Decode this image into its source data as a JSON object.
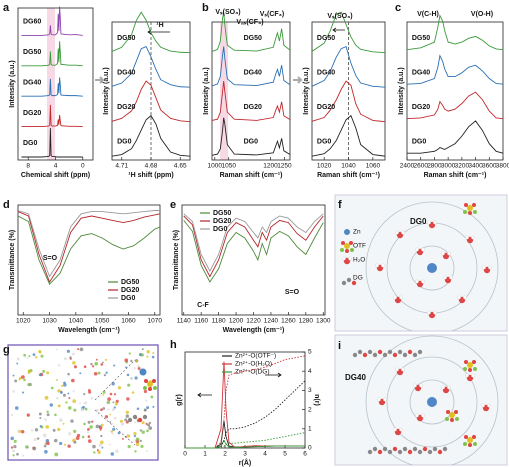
{
  "chart_data": [
    {
      "type": "line",
      "panel": "a",
      "xlabel": "Chemical shift (ppm)",
      "ylabel": "Intensity (a.u.)",
      "xlim": [
        9.5,
        -1.5
      ],
      "xticks": [
        8,
        4,
        0
      ],
      "ylim": [
        0,
        1
      ],
      "x": [
        9,
        6,
        5,
        4.85,
        4.75,
        4.65,
        4.5,
        4,
        3.7,
        3.6,
        3.5,
        3.4,
        3.3,
        3.2,
        2,
        1,
        0
      ],
      "series": [
        {
          "name": "DG60",
          "color": "#8e44ad",
          "values": [
            0,
            0,
            0.02,
            0.05,
            0.35,
            0.05,
            0.02,
            0.02,
            0.1,
            0.75,
            0.15,
            1,
            0.6,
            0.05,
            0.02,
            0.03,
            0
          ]
        },
        {
          "name": "DG50",
          "color": "#3a9a3a",
          "values": [
            0,
            0,
            0.02,
            0.05,
            0.5,
            0.05,
            0.02,
            0.02,
            0.08,
            0.6,
            0.12,
            0.85,
            0.5,
            0.05,
            0.02,
            0.02,
            0
          ]
        },
        {
          "name": "DG40",
          "color": "#2a6fb5",
          "values": [
            0,
            0,
            0.02,
            0.05,
            0.6,
            0.05,
            0.02,
            0.02,
            0.06,
            0.45,
            0.1,
            0.65,
            0.4,
            0.04,
            0.02,
            0.02,
            0
          ]
        },
        {
          "name": "DG20",
          "color": "#c0282d",
          "values": [
            0,
            0,
            0.02,
            0.05,
            0.75,
            0.05,
            0.02,
            0.02,
            0.04,
            0.25,
            0.06,
            0.4,
            0.2,
            0.03,
            0.01,
            0.01,
            0
          ]
        },
        {
          "name": "DG0",
          "color": "#222222",
          "values": [
            0,
            0,
            0.02,
            0.05,
            1,
            0.05,
            0.02,
            0.01,
            0,
            0,
            0,
            0,
            0,
            0,
            0,
            0,
            0
          ]
        }
      ]
    },
    {
      "type": "line",
      "xlabel": "¹H shift (ppm)",
      "ylabel": "Intensity (a.u.)",
      "annotations": [
        "¹H"
      ],
      "xlim": [
        4.72,
        4.64
      ],
      "xticks": [
        4.71,
        4.68,
        4.65
      ],
      "ylim": [
        0,
        1
      ],
      "x": [
        4.72,
        4.71,
        4.7,
        4.695,
        4.69,
        4.685,
        4.68,
        4.675,
        4.67,
        4.66,
        4.65,
        4.64
      ],
      "series": [
        {
          "name": "DG50",
          "color": "#3a9a3a",
          "values": [
            0.05,
            0.15,
            0.45,
            0.8,
            1,
            0.8,
            0.5,
            0.3,
            0.15,
            0.06,
            0.03,
            0.02
          ]
        },
        {
          "name": "DG40",
          "color": "#2a6fb5",
          "values": [
            0.04,
            0.12,
            0.35,
            0.65,
            0.95,
            1,
            0.75,
            0.45,
            0.2,
            0.08,
            0.03,
            0.02
          ]
        },
        {
          "name": "DG20",
          "color": "#c0282d",
          "values": [
            0.03,
            0.1,
            0.28,
            0.5,
            0.8,
            1,
            0.9,
            0.6,
            0.3,
            0.1,
            0.04,
            0.02
          ]
        },
        {
          "name": "DG0",
          "color": "#222222",
          "values": [
            0.02,
            0.06,
            0.2,
            0.4,
            0.65,
            0.9,
            1,
            0.8,
            0.45,
            0.12,
            0.04,
            0.02
          ]
        }
      ]
    },
    {
      "type": "line",
      "panel": "b",
      "xlabel": "Raman shift (cm⁻¹)",
      "ylabel": "Intensity (a.u.)",
      "annotations": [
        "Vₛ(SO₃)",
        "Vₐₛ(CF₃)",
        "Vₛ(CF₃)"
      ],
      "xlim": [
        990,
        1270
      ],
      "xticks": [
        1000,
        1050,
        1200,
        1250
      ],
      "ylim": [
        0,
        1
      ],
      "x": [
        990,
        1010,
        1020,
        1028,
        1032,
        1036,
        1045,
        1070,
        1150,
        1210,
        1218,
        1225,
        1232,
        1240,
        1248,
        1270
      ],
      "series": [
        {
          "name": "DG50",
          "color": "#3a9a3a",
          "values": [
            0.05,
            0.1,
            0.3,
            0.85,
            1,
            0.7,
            0.2,
            0.08,
            0.06,
            0.15,
            0.35,
            0.5,
            0.3,
            0.6,
            0.2,
            0.08
          ]
        },
        {
          "name": "DG40",
          "color": "#2a6fb5",
          "values": [
            0.05,
            0.1,
            0.28,
            0.8,
            1,
            0.72,
            0.22,
            0.08,
            0.06,
            0.14,
            0.32,
            0.45,
            0.28,
            0.55,
            0.18,
            0.08
          ]
        },
        {
          "name": "DG20",
          "color": "#c0282d",
          "values": [
            0.05,
            0.08,
            0.25,
            0.75,
            1,
            0.75,
            0.25,
            0.08,
            0.05,
            0.12,
            0.28,
            0.4,
            0.25,
            0.5,
            0.16,
            0.07
          ]
        },
        {
          "name": "DG0",
          "color": "#222222",
          "values": [
            0.04,
            0.07,
            0.2,
            0.65,
            0.95,
            0.8,
            0.3,
            0.07,
            0.05,
            0.1,
            0.25,
            0.38,
            0.22,
            0.45,
            0.15,
            0.06
          ]
        }
      ]
    },
    {
      "type": "line",
      "xlabel": "Raman shift (cm⁻¹)",
      "ylabel": "Intensity (a.u.)",
      "annotations": [
        "Vₛ(SO₃)"
      ],
      "xlim": [
        1010,
        1070
      ],
      "xticks": [
        1020,
        1040,
        1060
      ],
      "ylim": [
        0,
        1
      ],
      "x": [
        1010,
        1020,
        1025,
        1030,
        1034,
        1038,
        1042,
        1046,
        1050,
        1060,
        1070
      ],
      "series": [
        {
          "name": "DG50",
          "color": "#3a9a3a",
          "values": [
            0.05,
            0.25,
            0.55,
            0.95,
            1,
            0.7,
            0.4,
            0.2,
            0.1,
            0.04,
            0.02
          ]
        },
        {
          "name": "DG40",
          "color": "#2a6fb5",
          "values": [
            0.04,
            0.18,
            0.4,
            0.75,
            0.95,
            1,
            0.6,
            0.3,
            0.12,
            0.04,
            0.02
          ]
        },
        {
          "name": "DG20",
          "color": "#c0282d",
          "values": [
            0.03,
            0.12,
            0.3,
            0.55,
            0.8,
            1,
            0.9,
            0.45,
            0.2,
            0.05,
            0.02
          ]
        },
        {
          "name": "DG0",
          "color": "#222222",
          "values": [
            0.02,
            0.08,
            0.2,
            0.4,
            0.65,
            0.9,
            1,
            0.7,
            0.3,
            0.06,
            0.02
          ]
        }
      ]
    },
    {
      "type": "line",
      "panel": "c",
      "xlabel": "Raman shift (cm⁻¹)",
      "ylabel": "Intensity (a.u.)",
      "annotations": [
        "V(C-H)",
        "V(O-H)"
      ],
      "xlim": [
        2400,
        3800
      ],
      "xticks": [
        2400,
        2600,
        2800,
        3000,
        3200,
        3400,
        3600,
        3800
      ],
      "ylim": [
        0,
        1
      ],
      "x": [
        2400,
        2600,
        2800,
        2850,
        2880,
        2920,
        2950,
        3000,
        3100,
        3200,
        3300,
        3400,
        3500,
        3600,
        3700,
        3800
      ],
      "series": [
        {
          "name": "DG50",
          "color": "#3a9a3a",
          "values": [
            0.1,
            0.15,
            0.3,
            0.7,
            1,
            0.85,
            0.6,
            0.3,
            0.25,
            0.3,
            0.4,
            0.45,
            0.35,
            0.2,
            0.12,
            0.1
          ]
        },
        {
          "name": "DG40",
          "color": "#2a6fb5",
          "values": [
            0.1,
            0.12,
            0.25,
            0.55,
            0.85,
            0.7,
            0.5,
            0.3,
            0.3,
            0.4,
            0.55,
            0.6,
            0.45,
            0.25,
            0.12,
            0.1
          ]
        },
        {
          "name": "DG20",
          "color": "#c0282d",
          "values": [
            0.1,
            0.12,
            0.2,
            0.35,
            0.55,
            0.45,
            0.35,
            0.3,
            0.35,
            0.5,
            0.7,
            0.8,
            0.6,
            0.3,
            0.12,
            0.1
          ]
        },
        {
          "name": "DG0",
          "color": "#222222",
          "values": [
            0.1,
            0.1,
            0.15,
            0.2,
            0.25,
            0.22,
            0.2,
            0.25,
            0.35,
            0.55,
            0.8,
            0.95,
            0.7,
            0.35,
            0.15,
            0.1
          ]
        }
      ]
    },
    {
      "type": "line",
      "panel": "d",
      "xlabel": "Wavelength (cm⁻¹)",
      "ylabel": "Transmittance (%)",
      "annotations": [
        "S=O"
      ],
      "xlim": [
        1018,
        1072
      ],
      "xticks": [
        1020,
        1030,
        1040,
        1050,
        1060,
        1070
      ],
      "ylim": [
        0,
        100
      ],
      "x": [
        1018,
        1022,
        1026,
        1030,
        1034,
        1038,
        1042,
        1046,
        1050,
        1054,
        1058,
        1062,
        1066,
        1070,
        1072
      ],
      "series": [
        {
          "name": "DG50",
          "color": "#4e8a3a",
          "values": [
            90,
            85,
            50,
            28,
            38,
            60,
            72,
            74,
            70,
            64,
            60,
            63,
            70,
            78,
            80
          ]
        },
        {
          "name": "DG20",
          "color": "#b3262b",
          "values": [
            94,
            90,
            55,
            30,
            45,
            75,
            88,
            90,
            88,
            86,
            84,
            86,
            89,
            91,
            92
          ]
        },
        {
          "name": "DG0",
          "color": "#9a9a9a",
          "values": [
            95,
            92,
            60,
            35,
            50,
            80,
            92,
            94,
            94,
            93,
            92,
            93,
            94,
            95,
            95
          ]
        }
      ]
    },
    {
      "type": "line",
      "panel": "e",
      "xlabel": "Wavelength (cm⁻¹)",
      "ylabel": "Transmittance (%)",
      "annotations": [
        "C-F",
        "S=O"
      ],
      "xlim": [
        1138,
        1302
      ],
      "xticks": [
        1140,
        1160,
        1180,
        1200,
        1220,
        1240,
        1260,
        1280,
        1300
      ],
      "ylim": [
        0,
        100
      ],
      "x": [
        1140,
        1150,
        1160,
        1170,
        1180,
        1190,
        1200,
        1210,
        1220,
        1225,
        1230,
        1235,
        1240,
        1250,
        1260,
        1270,
        1280,
        1290,
        1300
      ],
      "series": [
        {
          "name": "DG50",
          "color": "#4e8a3a",
          "values": [
            86,
            76,
            45,
            30,
            42,
            65,
            75,
            70,
            58,
            50,
            65,
            55,
            70,
            76,
            72,
            62,
            55,
            70,
            84
          ]
        },
        {
          "name": "DG20",
          "color": "#b3262b",
          "values": [
            90,
            82,
            50,
            35,
            50,
            75,
            84,
            80,
            68,
            62,
            75,
            68,
            80,
            86,
            84,
            74,
            68,
            80,
            90
          ]
        },
        {
          "name": "DG0",
          "color": "#9a9a9a",
          "values": [
            92,
            85,
            55,
            40,
            55,
            80,
            88,
            85,
            75,
            70,
            80,
            75,
            85,
            90,
            88,
            80,
            75,
            85,
            92
          ]
        }
      ]
    },
    {
      "type": "line",
      "panel": "h",
      "xlabel": "r(Å)",
      "ylabel": "g(r)",
      "y2label": "n(r)",
      "xlim": [
        0,
        6
      ],
      "xticks": [
        0,
        1,
        2,
        3,
        4,
        5,
        6
      ],
      "ylim": [
        0,
        50
      ],
      "y2lim": [
        0,
        5
      ],
      "y2ticks": [
        0,
        1,
        2,
        3,
        4,
        5
      ],
      "x": [
        0,
        1,
        1.5,
        1.8,
        1.95,
        2.05,
        2.2,
        2.5,
        3,
        3.5,
        4,
        4.5,
        5,
        5.5,
        6
      ],
      "series": [
        {
          "name": "Zn²⁺-O(OTF⁻)",
          "color": "#222222",
          "values": [
            0,
            0,
            0,
            2,
            14,
            6,
            1,
            0.5,
            0.6,
            0.8,
            0.9,
            1,
            1,
            1,
            1
          ]
        },
        {
          "name": "Zn²⁺-O(H₂O)",
          "color": "#d0343a",
          "values": [
            0,
            0,
            0,
            10,
            45,
            20,
            3,
            0.3,
            0.8,
            1.2,
            1,
            1,
            1,
            1,
            1
          ]
        },
        {
          "name": "Zn²⁺-O(DG)",
          "color": "#3a9a3a",
          "values": [
            0,
            0,
            0,
            1,
            4,
            2,
            0.5,
            0.3,
            0.5,
            0.7,
            0.9,
            1,
            1,
            1,
            1
          ]
        },
        {
          "axis": "y2",
          "color": "#222222",
          "values": [
            0,
            0,
            0,
            0.05,
            0.4,
            0.8,
            1,
            1,
            1.1,
            1.3,
            1.6,
            2,
            2.5,
            3,
            3.5
          ]
        },
        {
          "axis": "y2",
          "color": "#d0343a",
          "values": [
            0,
            0,
            0,
            0.3,
            1.5,
            3,
            3.8,
            3.9,
            4,
            4.1,
            4.2,
            4.4,
            4.6,
            4.7,
            4.8
          ]
        },
        {
          "axis": "y2",
          "color": "#3a9a3a",
          "values": [
            0,
            0,
            0,
            0,
            0.1,
            0.2,
            0.25,
            0.25,
            0.3,
            0.35,
            0.4,
            0.5,
            0.6,
            0.7,
            0.8
          ]
        }
      ]
    }
  ],
  "diagrams": {
    "f": {
      "panel": "f",
      "title": "DG0",
      "legend": [
        "Zn",
        "OTF",
        "H₂O",
        "DG"
      ]
    },
    "g": {
      "panel": "g"
    },
    "i": {
      "panel": "i",
      "title": "DG40"
    }
  }
}
